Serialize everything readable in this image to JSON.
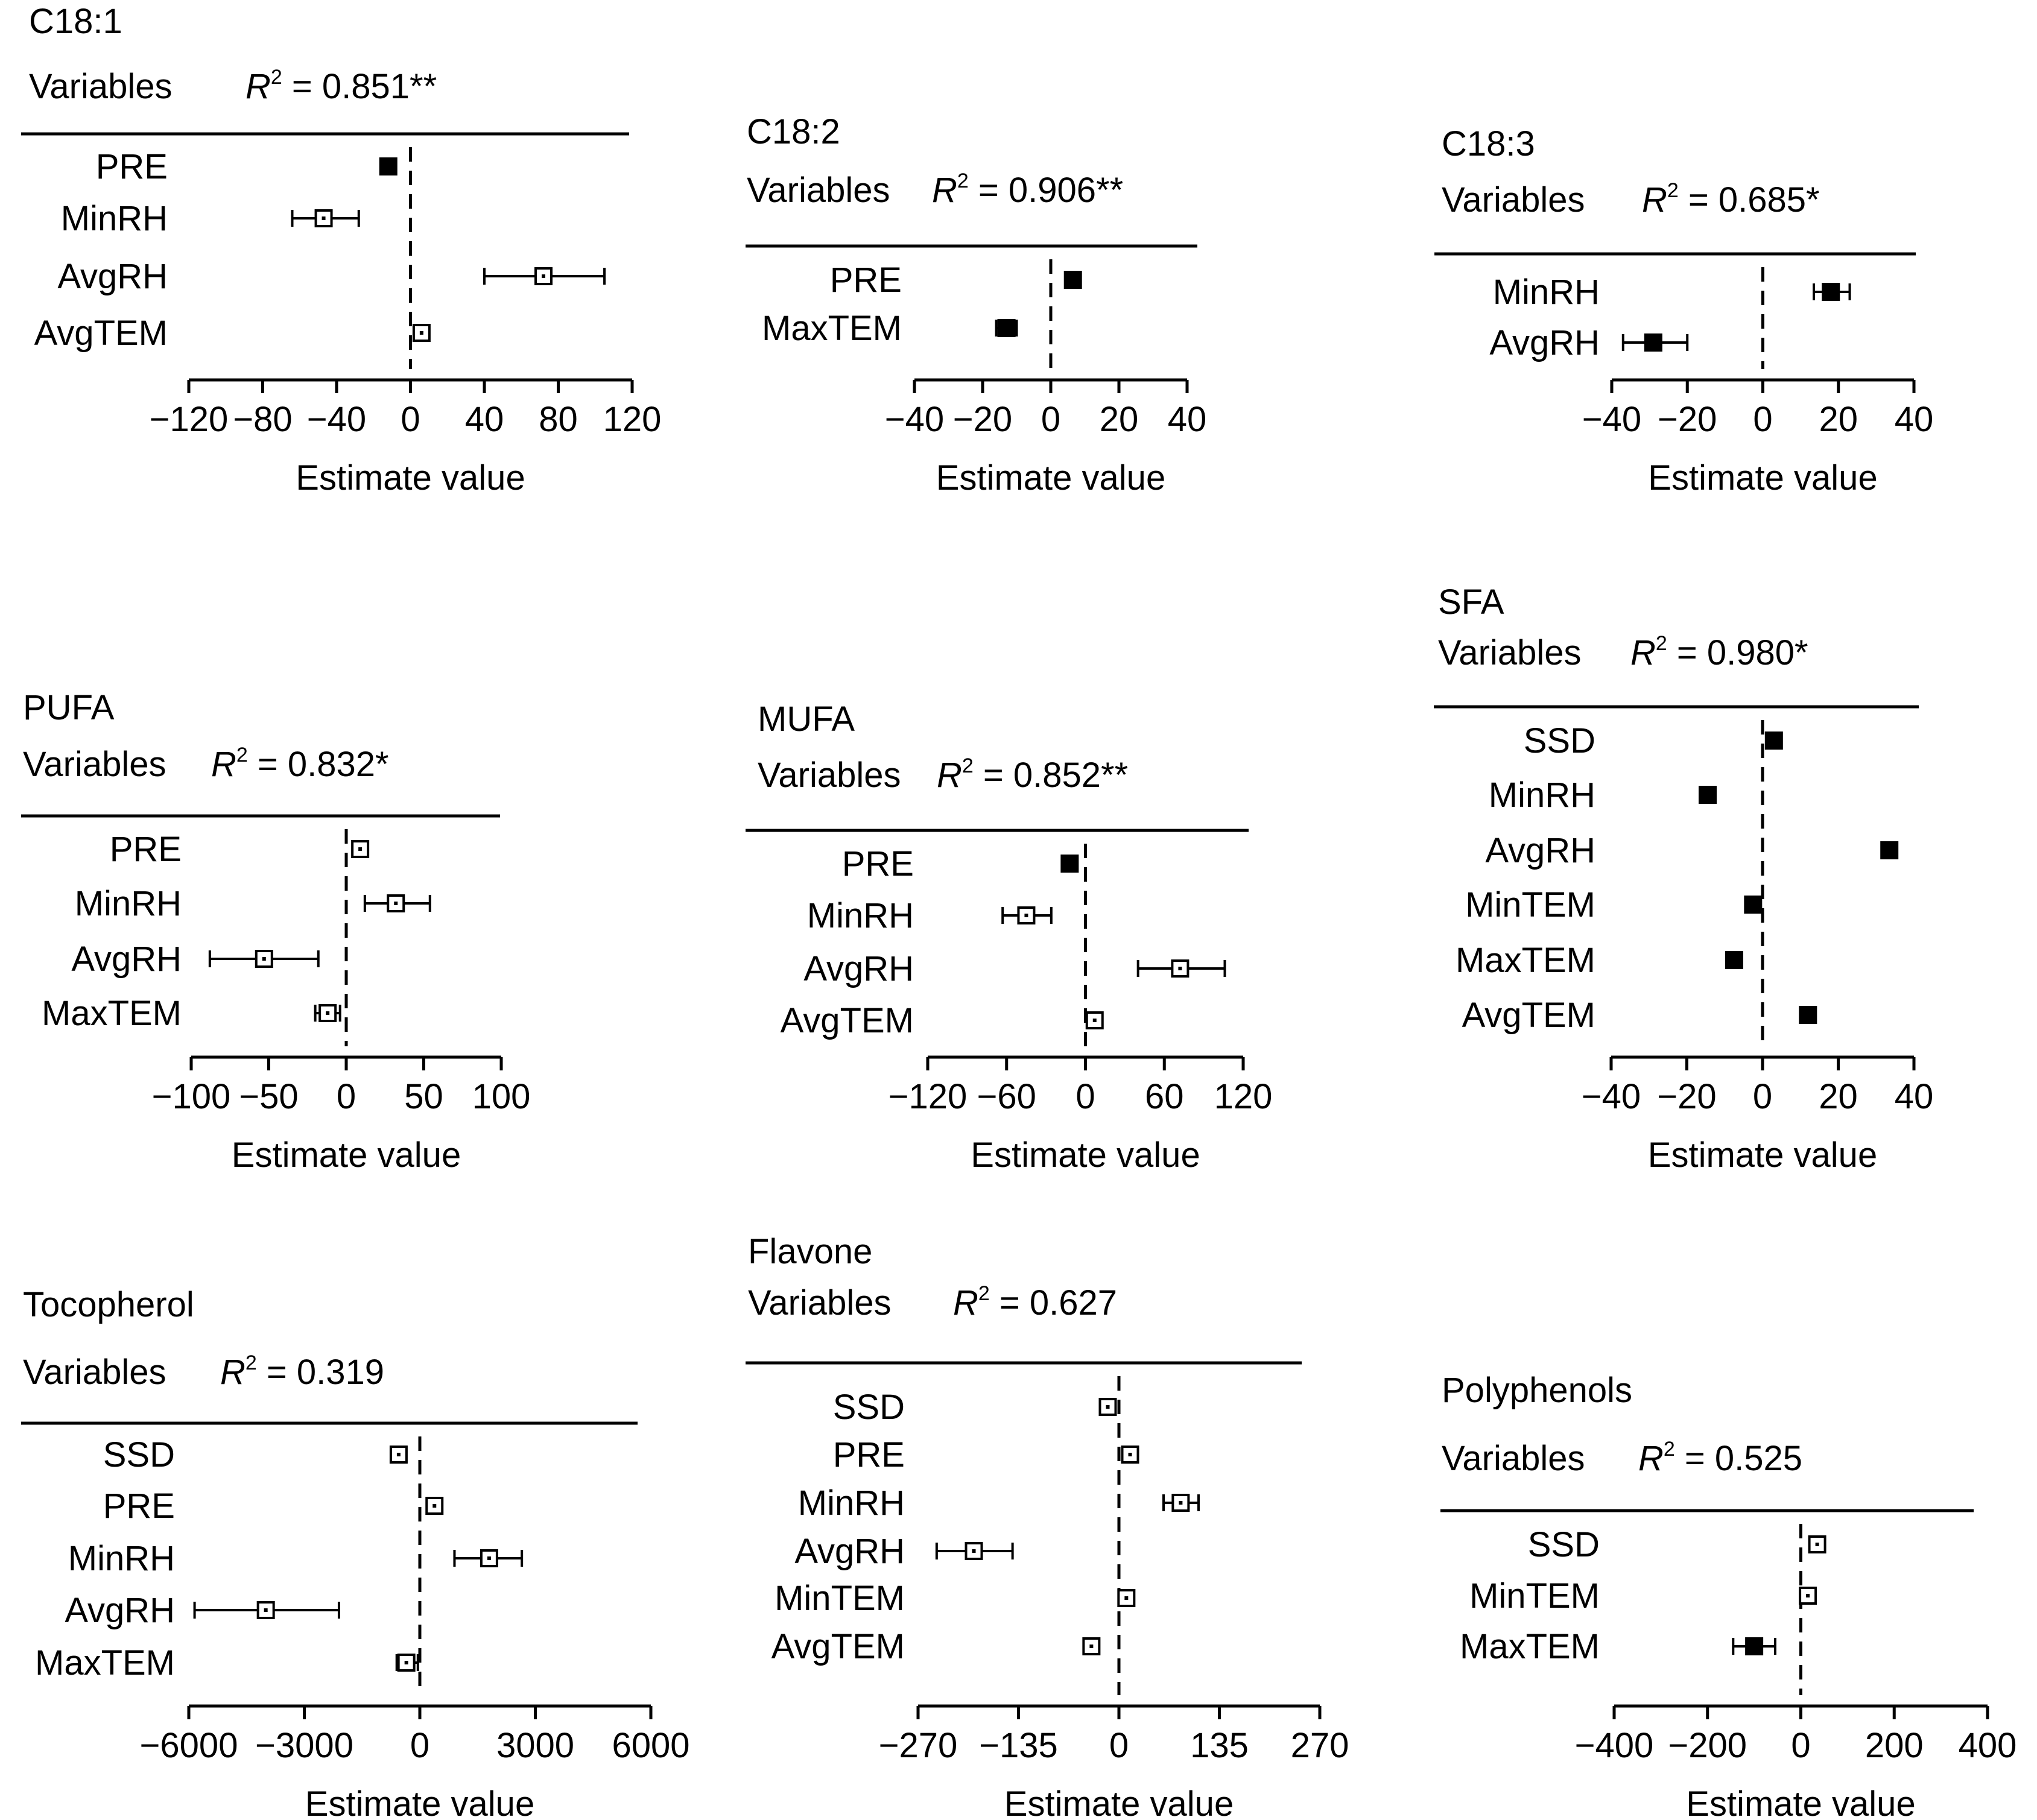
{
  "colors": {
    "ink": "#000000",
    "background": "#ffffff"
  },
  "chart_data": [
    {
      "type": "forest",
      "title": "C18:1",
      "header": "Variables",
      "r2_label": "R",
      "r2_text": " = 0.851**",
      "xlabel": "Estimate value",
      "xlim": [
        -120,
        120
      ],
      "ticks": [
        -120,
        -80,
        -40,
        0,
        40,
        80,
        120
      ],
      "tick_labels": [
        "−120",
        "−80",
        "−40",
        "0",
        "40",
        "80",
        "120"
      ],
      "rows": [
        {
          "label": "PRE",
          "estimate": -12,
          "low": -12,
          "high": -12,
          "marker": "filled"
        },
        {
          "label": "MinRH",
          "estimate": -47,
          "low": -64,
          "high": -28,
          "marker": "open"
        },
        {
          "label": "AvgRH",
          "estimate": 72,
          "low": 40,
          "high": 105,
          "marker": "open"
        },
        {
          "label": "AvgTEM",
          "estimate": 6,
          "low": 6,
          "high": 6,
          "marker": "open"
        }
      ]
    },
    {
      "type": "forest",
      "title": "C18:2",
      "header": "Variables",
      "r2_label": "R",
      "r2_text": " = 0.906**",
      "xlabel": "Estimate value",
      "xlim": [
        -40,
        40
      ],
      "ticks": [
        -40,
        -20,
        0,
        20,
        40
      ],
      "tick_labels": [
        "−40",
        "−20",
        "0",
        "20",
        "40"
      ],
      "rows": [
        {
          "label": "PRE",
          "estimate": 6.5,
          "low": 6.5,
          "high": 6.5,
          "marker": "filled"
        },
        {
          "label": "MaxTEM",
          "estimate": -13,
          "low": -16,
          "high": -10,
          "marker": "filled"
        }
      ]
    },
    {
      "type": "forest",
      "title": "C18:3",
      "header": "Variables",
      "r2_label": "R",
      "r2_text": " = 0.685*",
      "xlabel": "Estimate value",
      "xlim": [
        -40,
        40
      ],
      "ticks": [
        -40,
        -20,
        0,
        20,
        40
      ],
      "tick_labels": [
        "−40",
        "−20",
        "0",
        "20",
        "40"
      ],
      "rows": [
        {
          "label": "MinRH",
          "estimate": 18,
          "low": 13.5,
          "high": 23,
          "marker": "filled"
        },
        {
          "label": "AvgRH",
          "estimate": -29,
          "low": -37,
          "high": -20,
          "marker": "filled"
        }
      ]
    },
    {
      "type": "forest",
      "title": "PUFA",
      "header": "Variables",
      "r2_label": "R",
      "r2_text": " = 0.832*",
      "xlabel": "Estimate value",
      "xlim": [
        -100,
        100
      ],
      "ticks": [
        -100,
        -50,
        0,
        50,
        100
      ],
      "tick_labels": [
        "−100",
        "−50",
        "0",
        "50",
        "100"
      ],
      "rows": [
        {
          "label": "PRE",
          "estimate": 9,
          "low": 5,
          "high": 13,
          "marker": "open"
        },
        {
          "label": "MinRH",
          "estimate": 32,
          "low": 12,
          "high": 54,
          "marker": "open"
        },
        {
          "label": "AvgRH",
          "estimate": -53,
          "low": -88,
          "high": -18,
          "marker": "open"
        },
        {
          "label": "MaxTEM",
          "estimate": -12,
          "low": -20,
          "high": -4,
          "marker": "open"
        }
      ]
    },
    {
      "type": "forest",
      "title": "MUFA",
      "header": "Variables",
      "r2_label": "R",
      "r2_text": " = 0.852**",
      "xlabel": "Estimate value",
      "xlim": [
        -120,
        120
      ],
      "ticks": [
        -120,
        -60,
        0,
        60,
        120
      ],
      "tick_labels": [
        "−120",
        "−60",
        "0",
        "60",
        "120"
      ],
      "rows": [
        {
          "label": "PRE",
          "estimate": -12,
          "low": -12,
          "high": -12,
          "marker": "filled"
        },
        {
          "label": "MinRH",
          "estimate": -45,
          "low": -63,
          "high": -26,
          "marker": "open"
        },
        {
          "label": "AvgRH",
          "estimate": 72,
          "low": 40,
          "high": 106,
          "marker": "open"
        },
        {
          "label": "AvgTEM",
          "estimate": 7,
          "low": 7,
          "high": 7,
          "marker": "open"
        }
      ]
    },
    {
      "type": "forest",
      "title": "SFA",
      "header": "Variables",
      "r2_label": "R",
      "r2_text": " = 0.980*",
      "xlabel": "Estimate value",
      "xlim": [
        -40,
        40
      ],
      "ticks": [
        -40,
        -20,
        0,
        20,
        40
      ],
      "tick_labels": [
        "−40",
        "−20",
        "0",
        "20",
        "40"
      ],
      "rows": [
        {
          "label": "SSD",
          "estimate": 3,
          "low": 3,
          "high": 3,
          "marker": "filled"
        },
        {
          "label": "MinRH",
          "estimate": -14.5,
          "low": -14.5,
          "high": -14.5,
          "marker": "filled"
        },
        {
          "label": "AvgRH",
          "estimate": 33.5,
          "low": 33.5,
          "high": 33.5,
          "marker": "filled"
        },
        {
          "label": "MinTEM",
          "estimate": -2.5,
          "low": -2.5,
          "high": -2.5,
          "marker": "filled"
        },
        {
          "label": "MaxTEM",
          "estimate": -7.5,
          "low": -7.5,
          "high": -7.5,
          "marker": "filled"
        },
        {
          "label": "AvgTEM",
          "estimate": 12,
          "low": 12,
          "high": 12,
          "marker": "filled"
        }
      ]
    },
    {
      "type": "forest",
      "title": "Tocopherol",
      "header": "Variables",
      "r2_label": "R",
      "r2_text": " = 0.319",
      "xlabel": "Estimate value",
      "xlim": [
        -6000,
        6000
      ],
      "ticks": [
        -6000,
        -3000,
        0,
        3000,
        6000
      ],
      "tick_labels": [
        "−6000",
        "−3000",
        "0",
        "3000",
        "6000"
      ],
      "rows": [
        {
          "label": "SSD",
          "estimate": -550,
          "low": -750,
          "high": -350,
          "marker": "open"
        },
        {
          "label": "PRE",
          "estimate": 380,
          "low": 300,
          "high": 460,
          "marker": "open"
        },
        {
          "label": "MinRH",
          "estimate": 1800,
          "low": 900,
          "high": 2650,
          "marker": "open"
        },
        {
          "label": "AvgRH",
          "estimate": -4000,
          "low": -5850,
          "high": -2100,
          "marker": "open"
        },
        {
          "label": "MaxTEM",
          "estimate": -350,
          "low": -600,
          "high": -50,
          "marker": "open"
        }
      ]
    },
    {
      "type": "forest",
      "title": "Flavone",
      "header": "Variables",
      "r2_label": "R",
      "r2_text": " = 0.627",
      "xlabel": "Estimate value",
      "xlim": [
        -270,
        270
      ],
      "ticks": [
        -270,
        -135,
        0,
        135,
        270
      ],
      "tick_labels": [
        "−270",
        "−135",
        "0",
        "135",
        "270"
      ],
      "rows": [
        {
          "label": "SSD",
          "estimate": -15,
          "low": -25,
          "high": -5,
          "marker": "open"
        },
        {
          "label": "PRE",
          "estimate": 15,
          "low": 5,
          "high": 25,
          "marker": "open"
        },
        {
          "label": "MinRH",
          "estimate": 83,
          "low": 60,
          "high": 107,
          "marker": "open"
        },
        {
          "label": "AvgRH",
          "estimate": -195,
          "low": -245,
          "high": -143,
          "marker": "open"
        },
        {
          "label": "MinTEM",
          "estimate": 10,
          "low": 3,
          "high": 20,
          "marker": "open"
        },
        {
          "label": "AvgTEM",
          "estimate": -37,
          "low": -42,
          "high": -32,
          "marker": "open"
        }
      ]
    },
    {
      "type": "forest",
      "title": "Polyphenols",
      "header": "Variables",
      "r2_label": "R",
      "r2_text": " = 0.525",
      "xlabel": "Estimate value",
      "xlim": [
        -400,
        400
      ],
      "ticks": [
        -400,
        -200,
        0,
        200,
        400
      ],
      "tick_labels": [
        "−400",
        "−200",
        "0",
        "200",
        "400"
      ],
      "rows": [
        {
          "label": "SSD",
          "estimate": 35,
          "low": 25,
          "high": 45,
          "marker": "open"
        },
        {
          "label": "MinTEM",
          "estimate": 15,
          "low": 5,
          "high": 30,
          "marker": "open"
        },
        {
          "label": "MaxTEM",
          "estimate": -100,
          "low": -145,
          "high": -55,
          "marker": "filled"
        }
      ]
    }
  ]
}
